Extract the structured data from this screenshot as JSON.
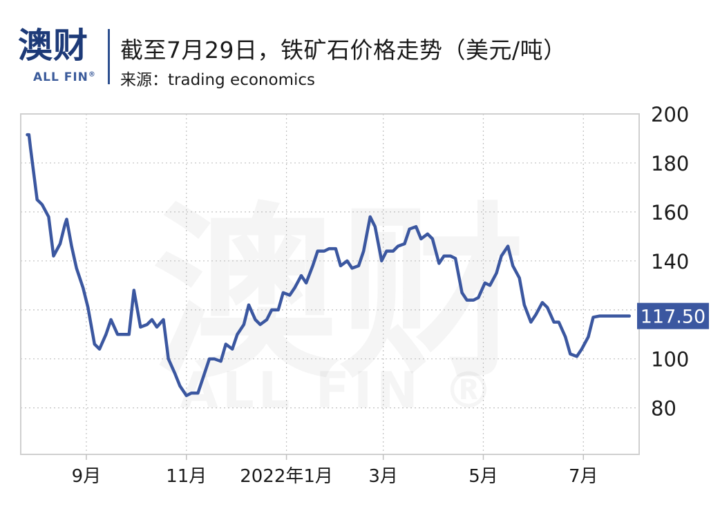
{
  "brand": {
    "name_cn": "澳财",
    "name_en": "ALL FIN",
    "registered_mark": "®"
  },
  "header": {
    "title": "截至7月29日，铁矿石价格走势（美元/吨）",
    "source": "来源：trading economics"
  },
  "chart_data": {
    "type": "line",
    "title": "截至7月29日，铁矿石价格走势（美元/吨）",
    "subtitle": "来源：trading economics",
    "xlabel": "",
    "ylabel": "",
    "x_tick_labels": [
      "9月",
      "11月",
      "2022年1月",
      "3月",
      "5月",
      "7月"
    ],
    "y_ticks": [
      80,
      100,
      120,
      140,
      160,
      180,
      200
    ],
    "y_tick_labels": [
      "80",
      "100",
      "",
      "140",
      "160",
      "180",
      "200"
    ],
    "ylim": [
      61,
      200
    ],
    "grid": true,
    "y_axis_side": "right",
    "last_value_label": "117.50",
    "series": [
      {
        "color": "#3b57a0",
        "x": [
          "2021-07-27",
          "2021-07-28",
          "2021-07-29",
          "2021-08-02",
          "2021-08-05",
          "2021-08-09",
          "2021-08-12",
          "2021-08-16",
          "2021-08-19",
          "2021-08-20",
          "2021-08-23",
          "2021-08-26",
          "2021-08-30",
          "2021-09-02",
          "2021-09-06",
          "2021-09-09",
          "2021-09-13",
          "2021-09-16",
          "2021-09-20",
          "2021-09-23",
          "2021-09-27",
          "2021-09-30",
          "2021-10-04",
          "2021-10-08",
          "2021-10-11",
          "2021-10-14",
          "2021-10-18",
          "2021-10-21",
          "2021-10-25",
          "2021-10-28",
          "2021-11-01",
          "2021-11-04",
          "2021-11-08",
          "2021-11-11",
          "2021-11-15",
          "2021-11-18",
          "2021-11-22",
          "2021-11-25",
          "2021-11-29",
          "2021-12-02",
          "2021-12-06",
          "2021-12-09",
          "2021-12-13",
          "2021-12-16",
          "2021-12-20",
          "2021-12-23",
          "2021-12-27",
          "2021-12-30",
          "2022-01-03",
          "2022-01-06",
          "2022-01-10",
          "2022-01-13",
          "2022-01-17",
          "2022-01-20",
          "2022-01-24",
          "2022-01-27",
          "2022-01-31",
          "2022-02-03",
          "2022-02-07",
          "2022-02-10",
          "2022-02-14",
          "2022-02-17",
          "2022-02-21",
          "2022-02-24",
          "2022-02-28",
          "2022-03-03",
          "2022-03-07",
          "2022-03-10",
          "2022-03-14",
          "2022-03-17",
          "2022-03-21",
          "2022-03-24",
          "2022-03-28",
          "2022-03-31",
          "2022-04-04",
          "2022-04-07",
          "2022-04-11",
          "2022-04-14",
          "2022-04-18",
          "2022-04-21",
          "2022-04-25",
          "2022-04-28",
          "2022-05-02",
          "2022-05-05",
          "2022-05-09",
          "2022-05-12",
          "2022-05-16",
          "2022-05-19",
          "2022-05-23",
          "2022-05-26",
          "2022-05-30",
          "2022-06-02",
          "2022-06-06",
          "2022-06-09",
          "2022-06-13",
          "2022-06-16",
          "2022-06-20",
          "2022-06-23",
          "2022-06-27",
          "2022-06-30",
          "2022-07-04",
          "2022-07-07",
          "2022-07-11",
          "2022-07-14",
          "2022-07-18",
          "2022-07-21",
          "2022-07-25",
          "2022-07-28",
          "2022-07-29"
        ],
        "values": [
          191.5,
          191.5,
          186,
          165,
          163,
          158,
          142,
          147,
          155,
          157,
          146,
          137,
          129,
          121,
          106,
          104,
          110,
          116,
          110,
          110,
          110,
          128,
          113,
          114,
          116,
          113,
          116,
          100,
          94,
          89,
          85,
          86,
          86,
          92,
          100,
          100,
          99,
          106,
          104,
          110,
          114,
          122,
          116,
          114,
          116,
          120,
          120,
          127,
          126,
          129,
          134,
          131,
          138,
          144,
          144,
          145,
          145,
          138,
          140,
          137,
          138,
          144,
          158,
          154,
          140,
          144,
          144,
          146,
          147,
          153,
          154,
          149,
          151,
          149,
          139,
          142,
          142,
          141,
          127,
          124,
          124,
          125,
          131,
          130,
          135,
          142,
          146,
          138,
          133,
          122,
          115,
          118,
          123,
          121,
          115,
          115,
          109,
          102,
          101,
          104,
          109,
          117,
          117.5,
          117.5,
          117.5,
          117.5,
          117.5,
          117.5,
          117.5
        ]
      }
    ]
  }
}
